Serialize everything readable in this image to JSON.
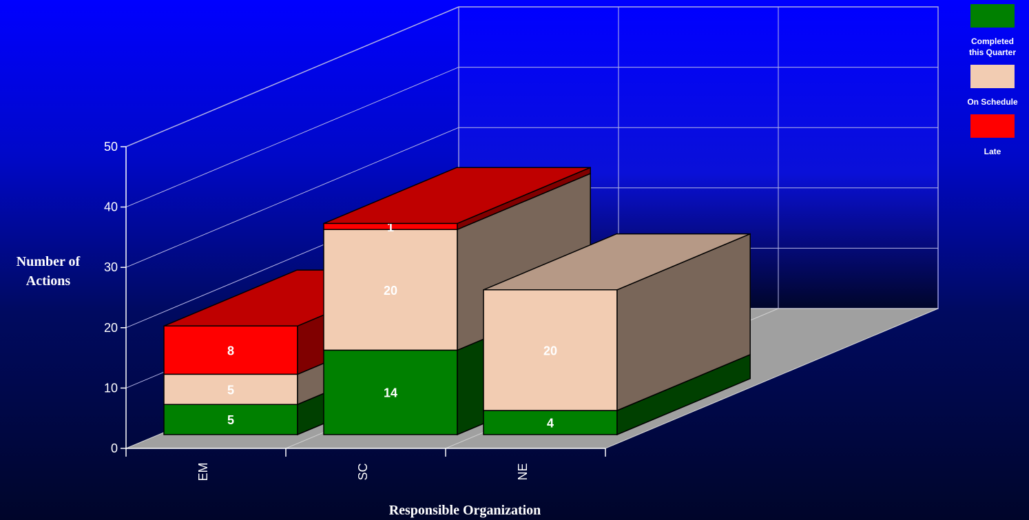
{
  "chart_data": {
    "type": "bar",
    "stacked": true,
    "three_d": true,
    "categories": [
      "EM",
      "SC",
      "NE"
    ],
    "series": [
      {
        "name": "Completed this Quarter",
        "values": [
          5,
          14,
          4
        ],
        "color": "#008000"
      },
      {
        "name": "On Schedule",
        "values": [
          5,
          20,
          20
        ],
        "color": "#f2ccb2"
      },
      {
        "name": "Late",
        "values": [
          8,
          1,
          0
        ],
        "color": "#ff0000"
      }
    ],
    "title": "",
    "xlabel": "Responsible Organization",
    "ylabel": "Number of Actions",
    "ylim": [
      0,
      50
    ],
    "yticks": [
      0,
      10,
      20,
      30,
      40,
      50
    ],
    "grid": true,
    "legend_position": "top-right"
  },
  "legend": {
    "items": [
      {
        "label": "Completed\nthis Quarter",
        "color": "#008000"
      },
      {
        "label": "On Schedule",
        "color": "#f2ccb2"
      },
      {
        "label": "Late",
        "color": "#ff0000"
      }
    ]
  }
}
